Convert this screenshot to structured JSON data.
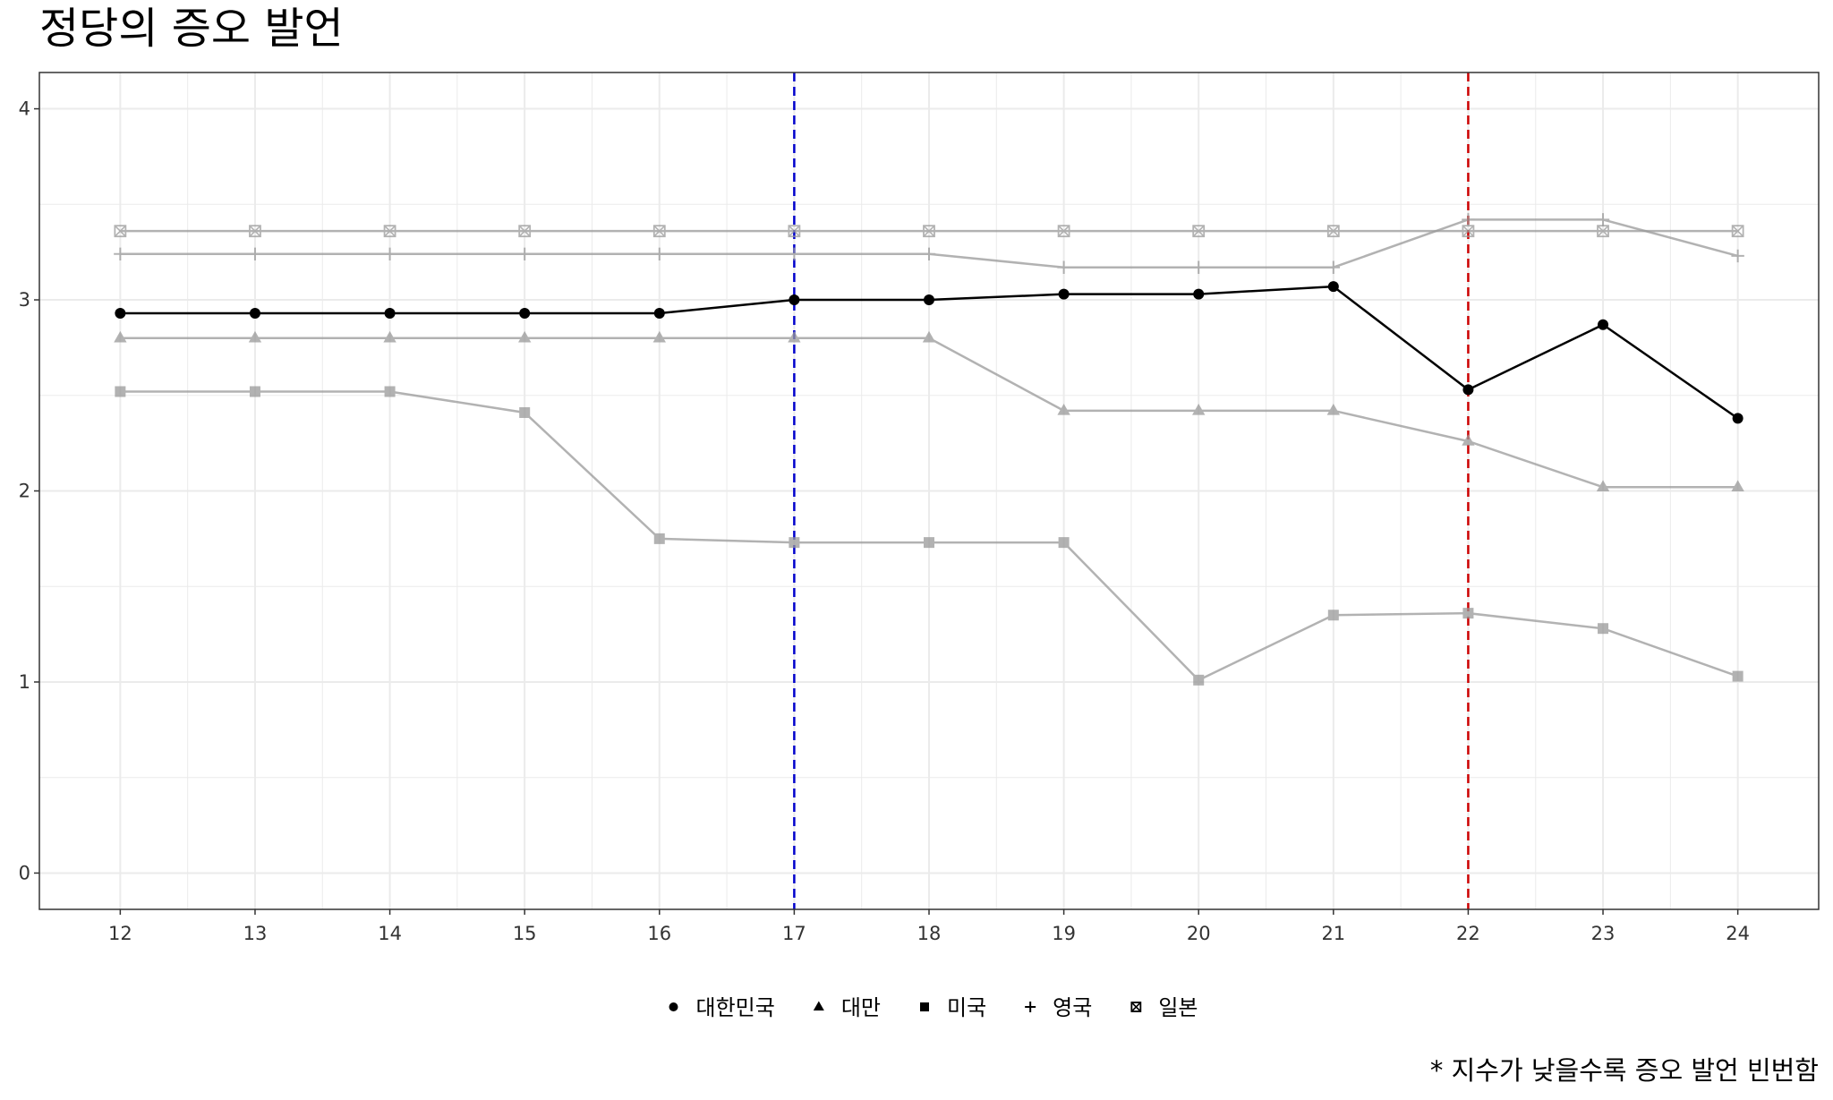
{
  "chart_data": {
    "type": "line",
    "title": "정당의 증오 발언",
    "caption": "* 지수가 낮을수록 증오 발언 빈번함",
    "xlabel": "",
    "ylabel": "",
    "x": [
      12,
      13,
      14,
      15,
      16,
      17,
      18,
      19,
      20,
      21,
      22,
      23,
      24
    ],
    "xlim": [
      11.4,
      24.6
    ],
    "ylim": [
      -0.19,
      4.19
    ],
    "y_ticks": [
      0,
      1,
      2,
      3,
      4
    ],
    "grid": true,
    "legend_position": "bottom",
    "reference_lines": [
      {
        "x": 17,
        "color": "#0000cc",
        "style": "dashed"
      },
      {
        "x": 22,
        "color": "#cc0000",
        "style": "dashed"
      }
    ],
    "series": [
      {
        "name": "대한민국",
        "shape": "circle",
        "color": "#000000",
        "highlight": true,
        "values": [
          2.93,
          2.93,
          2.93,
          2.93,
          2.93,
          3.0,
          3.0,
          3.03,
          3.03,
          3.07,
          2.53,
          2.87,
          2.38
        ]
      },
      {
        "name": "대만",
        "shape": "triangle",
        "color": "#999999",
        "highlight": false,
        "values": [
          2.8,
          2.8,
          2.8,
          2.8,
          2.8,
          2.8,
          2.8,
          2.42,
          2.42,
          2.42,
          2.26,
          2.02,
          2.02
        ]
      },
      {
        "name": "미국",
        "shape": "square",
        "color": "#999999",
        "highlight": false,
        "values": [
          2.52,
          2.52,
          2.52,
          2.41,
          1.75,
          1.73,
          1.73,
          1.73,
          1.01,
          1.35,
          1.36,
          1.28,
          1.03
        ]
      },
      {
        "name": "영국",
        "shape": "plus",
        "color": "#999999",
        "highlight": false,
        "values": [
          3.24,
          3.24,
          3.24,
          3.24,
          3.24,
          3.24,
          3.24,
          3.17,
          3.17,
          3.17,
          3.42,
          3.42,
          3.23
        ]
      },
      {
        "name": "일본",
        "shape": "boxx",
        "color": "#999999",
        "highlight": false,
        "values": [
          3.36,
          3.36,
          3.36,
          3.36,
          3.36,
          3.36,
          3.36,
          3.36,
          3.36,
          3.36,
          3.36,
          3.36,
          3.36
        ]
      }
    ]
  }
}
